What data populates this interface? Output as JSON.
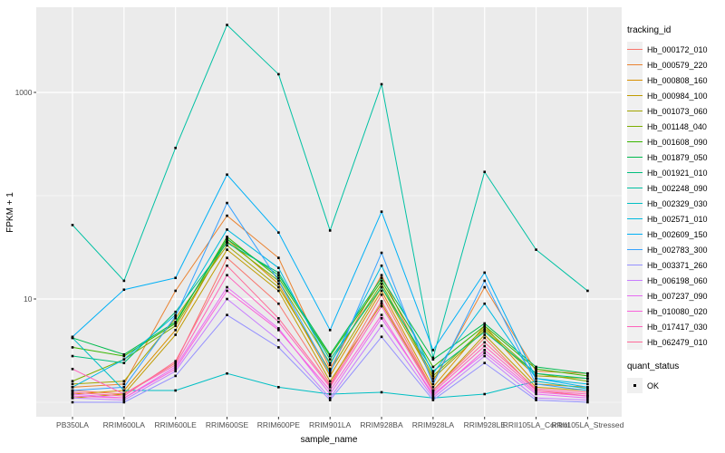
{
  "chart_data": {
    "type": "line",
    "title": "",
    "xlabel": "sample_name",
    "ylabel": "FPKM + 1",
    "x_categories": [
      "PB350LA",
      "RRIM600LA",
      "RRIM600LE",
      "RRIM600SE",
      "RRIM600PE",
      "RRIM901LA",
      "RRIM928BA",
      "RRIM928LA",
      "RRIM928LE",
      "RRII105LA_Control",
      "RRII105LA_Stressed"
    ],
    "y_scale": "log10",
    "y_major_ticks": [
      10,
      1000
    ],
    "y_tick_labels": [
      "10",
      "1000"
    ],
    "y_minor_gridlines": [
      1,
      100
    ],
    "ylim_log10": [
      -0.16,
      3.83
    ],
    "grid": true,
    "legend": {
      "title": "tracking_id",
      "position": "right"
    },
    "quant_legend": {
      "title": "quant_status",
      "items": [
        "OK"
      ]
    },
    "marker": {
      "shape": "square",
      "color": "#000000",
      "size": 2.6
    },
    "colors": {
      "panel_background": "#EBEBEB",
      "gridline": "#FFFFFF",
      "axis_text": "#4D4D4D",
      "tick_mark": "#333333",
      "legend_key_background": "#F0F0F0"
    },
    "series": [
      {
        "name": "Hb_000172_010",
        "color": "#F8766D",
        "values": [
          1.3,
          1.2,
          2.4,
          25,
          9,
          1.5,
          11,
          1.3,
          4.2,
          1.3,
          1.15
        ]
      },
      {
        "name": "Hb_000579_220",
        "color": "#EA8331",
        "values": [
          1.4,
          1.5,
          12,
          64,
          25,
          2.1,
          17,
          1.6,
          13,
          2.0,
          1.9
        ]
      },
      {
        "name": "Hb_000808_160",
        "color": "#D89000",
        "values": [
          1.2,
          1.3,
          5.0,
          38,
          14,
          1.8,
          12,
          1.4,
          5.5,
          1.5,
          1.4
        ]
      },
      {
        "name": "Hb_000984_100",
        "color": "#C09B00",
        "values": [
          1.1,
          1.2,
          4.5,
          30,
          12,
          1.6,
          9.0,
          1.3,
          4.5,
          1.4,
          1.3
        ]
      },
      {
        "name": "Hb_001073_060",
        "color": "#A3A500",
        "values": [
          1.5,
          1.6,
          6.5,
          33,
          13,
          2.0,
          13,
          1.7,
          5.0,
          1.8,
          1.7
        ]
      },
      {
        "name": "Hb_001148_040",
        "color": "#7CAE00",
        "values": [
          1.6,
          2.6,
          5.5,
          36,
          15,
          2.4,
          14,
          1.8,
          5.2,
          1.9,
          1.6
        ]
      },
      {
        "name": "Hb_001608_090",
        "color": "#39B600",
        "values": [
          3.4,
          2.8,
          5.8,
          40,
          16,
          2.8,
          15,
          2.2,
          5.5,
          2.1,
          1.8
        ]
      },
      {
        "name": "Hb_001879_050",
        "color": "#00BB4E",
        "values": [
          4.2,
          2.9,
          6.0,
          38,
          17,
          2.9,
          16,
          2.6,
          5.8,
          2.2,
          1.9
        ]
      },
      {
        "name": "Hb_001921_010",
        "color": "#00BF7D",
        "values": [
          2.8,
          2.4,
          7.5,
          35,
          18,
          2.6,
          13,
          2.0,
          4.8,
          1.9,
          1.7
        ]
      },
      {
        "name": "Hb_002248_090",
        "color": "#00C1A3",
        "values": [
          52,
          15,
          290,
          4500,
          1500,
          46,
          1200,
          2.7,
          170,
          30,
          12
        ]
      },
      {
        "name": "Hb_002329_030",
        "color": "#00BFC4",
        "values": [
          4.2,
          1.3,
          1.3,
          1.9,
          1.4,
          1.2,
          1.25,
          1.1,
          1.2,
          1.6,
          1.35
        ]
      },
      {
        "name": "Hb_002571_010",
        "color": "#00BAE0",
        "values": [
          1.4,
          2.6,
          7.0,
          47,
          20,
          2.3,
          21,
          1.9,
          9.0,
          1.7,
          1.5
        ]
      },
      {
        "name": "Hb_002609_150",
        "color": "#00B0F6",
        "values": [
          4.3,
          12.3,
          16,
          160,
          44,
          5.0,
          70,
          3.2,
          18,
          1.7,
          1.4
        ]
      },
      {
        "name": "Hb_002783_300",
        "color": "#35A2FF",
        "values": [
          1.3,
          1.4,
          6.8,
          85,
          15,
          1.9,
          28,
          1.5,
          15,
          1.5,
          1.3
        ]
      },
      {
        "name": "Hb_003371_260",
        "color": "#9590FF",
        "values": [
          1.0,
          1.0,
          1.8,
          7.0,
          3.4,
          1.05,
          4.3,
          1.05,
          2.4,
          1.05,
          1.0
        ]
      },
      {
        "name": "Hb_006198_060",
        "color": "#C77CFF",
        "values": [
          1.1,
          1.05,
          2.0,
          10,
          4.0,
          1.1,
          5.5,
          1.1,
          2.8,
          1.1,
          1.05
        ]
      },
      {
        "name": "Hb_007237_090",
        "color": "#E76BF3",
        "values": [
          1.2,
          1.1,
          2.2,
          13,
          5.2,
          1.2,
          6.5,
          1.2,
          3.0,
          1.2,
          1.1
        ]
      },
      {
        "name": "Hb_010080_020",
        "color": "#FA62DB",
        "values": [
          1.15,
          1.1,
          2.1,
          12,
          5.0,
          1.3,
          7.0,
          1.15,
          3.2,
          1.25,
          1.15
        ]
      },
      {
        "name": "Hb_017417_030",
        "color": "#FF62BC",
        "values": [
          2.1,
          1.2,
          2.3,
          17,
          6.0,
          1.4,
          8.5,
          1.25,
          3.5,
          1.3,
          1.2
        ]
      },
      {
        "name": "Hb_062479_010",
        "color": "#FF6A98",
        "values": [
          1.25,
          1.15,
          2.5,
          21,
          6.5,
          1.45,
          9.5,
          1.3,
          3.8,
          1.35,
          1.25
        ]
      }
    ]
  }
}
